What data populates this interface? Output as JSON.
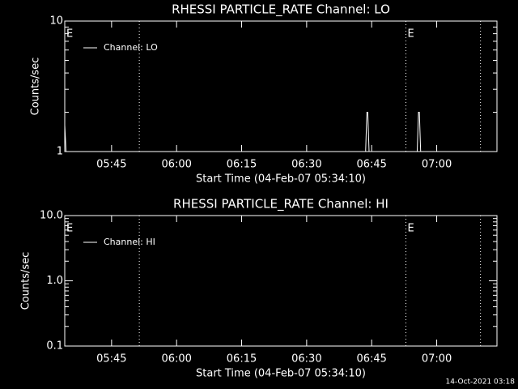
{
  "chart_data": [
    {
      "type": "line",
      "title": "RHESSI PARTICLE_RATE Channel: LO",
      "xlabel": "Start Time (04-Feb-07 05:34:10)",
      "ylabel": "Counts/sec",
      "log_y": true,
      "legend": "upper left",
      "xlim": [
        334.2,
        433.9
      ],
      "xticks": [
        {
          "value": 345,
          "label": "05:45"
        },
        {
          "value": 360,
          "label": "06:00"
        },
        {
          "value": 375,
          "label": "06:15"
        },
        {
          "value": 390,
          "label": "06:30"
        },
        {
          "value": 405,
          "label": "06:45"
        },
        {
          "value": 420,
          "label": "07:00"
        }
      ],
      "ylim": [
        1,
        10
      ],
      "yticks": [
        1,
        10
      ],
      "minor_yticks": [
        2,
        3,
        4,
        5,
        6,
        7,
        8,
        9
      ],
      "vlines": [
        351.4,
        412.9,
        430.1
      ],
      "annotations": [
        {
          "text": "E",
          "x": 334.2
        },
        {
          "text": "E",
          "x": 412.9
        }
      ],
      "series": [
        {
          "name": "Channel: LO",
          "color": "#ffffff",
          "x": [
            334.2,
            334.5,
            334.8,
            403.6,
            403.9,
            404.1,
            404.4,
            415.5,
            415.8,
            416.0,
            416.3,
            433.9
          ],
          "values": [
            1.6,
            1,
            1,
            1,
            2,
            2,
            1,
            1,
            2,
            2,
            1,
            1
          ]
        }
      ]
    },
    {
      "type": "line",
      "title": "RHESSI PARTICLE_RATE Channel: HI",
      "xlabel": "Start Time (04-Feb-07 05:34:10)",
      "ylabel": "Counts/sec",
      "log_y": true,
      "legend": "upper left",
      "xlim": [
        334.2,
        433.9
      ],
      "xticks": [
        {
          "value": 345,
          "label": "05:45"
        },
        {
          "value": 360,
          "label": "06:00"
        },
        {
          "value": 375,
          "label": "06:15"
        },
        {
          "value": 390,
          "label": "06:30"
        },
        {
          "value": 405,
          "label": "06:45"
        },
        {
          "value": 420,
          "label": "07:00"
        }
      ],
      "ylim": [
        0.1,
        10
      ],
      "yticks": [
        {
          "value": 10,
          "label": "10.0"
        },
        {
          "value": 1,
          "label": "1.0"
        },
        0.1
      ],
      "minor_yticks": [
        0.2,
        0.3,
        0.4,
        0.5,
        0.6,
        0.7,
        0.8,
        0.9,
        2,
        3,
        4,
        5,
        6,
        7,
        8,
        9
      ],
      "vlines": [
        351.4,
        412.9,
        430.1
      ],
      "annotations": [
        {
          "text": "E",
          "x": 334.2
        },
        {
          "text": "E",
          "x": 412.9
        }
      ],
      "series": [
        {
          "name": "Channel: HI",
          "color": "#ffffff",
          "x": [],
          "values": []
        }
      ]
    }
  ],
  "footer": "14-Oct-2021 03:18"
}
